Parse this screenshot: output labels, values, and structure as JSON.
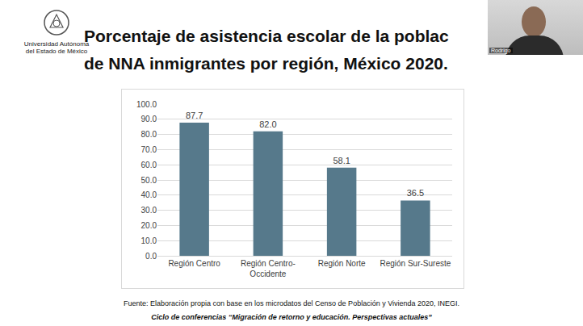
{
  "header": {
    "logo_text": [
      "Universidad Autónoma",
      "del Estado de México"
    ],
    "title_lines": [
      "Porcentaje de asistencia escolar de la poblac",
      "de NNA inmigrantes por región, México 2020."
    ]
  },
  "overlay": {
    "name": "Rodrigo"
  },
  "chart_data": {
    "type": "bar",
    "categories": [
      "Región Centro",
      "Región Centro-Occidente",
      "Región Norte",
      "Región Sur-Sureste"
    ],
    "values": [
      87.7,
      82.0,
      58.1,
      36.5
    ],
    "value_labels": [
      "87.7",
      "82.0",
      "58.1",
      "36.5"
    ],
    "data_labels": true,
    "color": "#56798b",
    "ylim": [
      0,
      100
    ],
    "yticks": [
      {
        "value": 0,
        "label": "0.0"
      },
      {
        "value": 10,
        "label": "10.0"
      },
      {
        "value": 20,
        "label": "20.0"
      },
      {
        "value": 30,
        "label": "30.0"
      },
      {
        "value": 40,
        "label": "40.0"
      },
      {
        "value": 50,
        "label": "50.0"
      },
      {
        "value": 60,
        "label": "60.0"
      },
      {
        "value": 70,
        "label": "70.0"
      },
      {
        "value": 80,
        "label": "80.0"
      },
      {
        "value": 90,
        "label": "90.0"
      },
      {
        "value": 100,
        "label": "100.0"
      }
    ],
    "grid": true
  },
  "footer": {
    "source": "Fuente: Elaboración propia con base en los microdatos del Censo de Población y Vivienda 2020, INEGI.",
    "series": "Ciclo de conferencias “Migración de retorno y educación. Perspectivas actuales”"
  }
}
